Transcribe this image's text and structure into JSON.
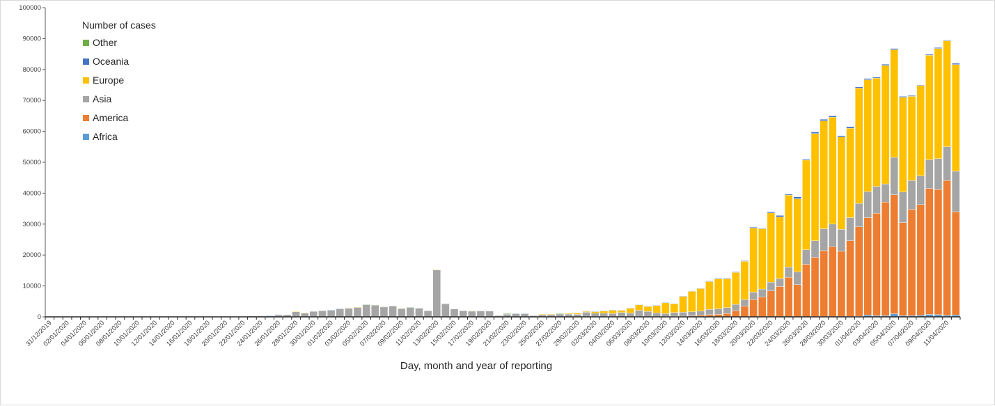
{
  "chart_data": {
    "type": "bar",
    "stacked": true,
    "title": "",
    "xlabel": "Day, month and year of reporting",
    "ylabel": "",
    "ylim": [
      0,
      100000
    ],
    "yticks": [
      0,
      10000,
      20000,
      30000,
      40000,
      50000,
      60000,
      70000,
      80000,
      90000,
      100000
    ],
    "legend": {
      "title": "Number of cases",
      "placement": "top-left",
      "order": [
        "Other",
        "Oceania",
        "Europe",
        "Asia",
        "America",
        "Africa"
      ]
    },
    "tick_label_every": 2,
    "categories": [
      "31/12/2019",
      "01/01/2020",
      "02/01/2020",
      "03/01/2020",
      "04/01/2020",
      "05/01/2020",
      "06/01/2020",
      "07/01/2020",
      "08/01/2020",
      "09/01/2020",
      "10/01/2020",
      "11/01/2020",
      "12/01/2020",
      "13/01/2020",
      "14/01/2020",
      "15/01/2020",
      "16/01/2020",
      "17/01/2020",
      "18/01/2020",
      "19/01/2020",
      "20/01/2020",
      "21/01/2020",
      "22/01/2020",
      "23/01/2020",
      "24/01/2020",
      "25/01/2020",
      "26/01/2020",
      "27/01/2020",
      "28/01/2020",
      "29/01/2020",
      "30/01/2020",
      "31/01/2020",
      "01/02/2020",
      "02/02/2020",
      "03/02/2020",
      "04/02/2020",
      "05/02/2020",
      "06/02/2020",
      "07/02/2020",
      "08/02/2020",
      "09/02/2020",
      "10/02/2020",
      "11/02/2020",
      "12/02/2020",
      "13/02/2020",
      "14/02/2020",
      "15/02/2020",
      "16/02/2020",
      "17/02/2020",
      "18/02/2020",
      "19/02/2020",
      "20/02/2020",
      "21/02/2020",
      "22/02/2020",
      "23/02/2020",
      "24/02/2020",
      "25/02/2020",
      "26/02/2020",
      "27/02/2020",
      "28/02/2020",
      "29/02/2020",
      "01/03/2020",
      "02/03/2020",
      "03/03/2020",
      "04/03/2020",
      "05/03/2020",
      "06/03/2020",
      "07/03/2020",
      "08/03/2020",
      "09/03/2020",
      "10/03/2020",
      "11/03/2020",
      "12/03/2020",
      "13/03/2020",
      "14/03/2020",
      "15/03/2020",
      "16/03/2020",
      "17/03/2020",
      "18/03/2020",
      "19/03/2020",
      "20/03/2020",
      "21/03/2020",
      "22/03/2020",
      "23/03/2020",
      "24/03/2020",
      "25/03/2020",
      "26/03/2020",
      "27/03/2020",
      "28/03/2020",
      "29/03/2020",
      "30/03/2020",
      "31/03/2020",
      "01/04/2020",
      "02/04/2020",
      "03/04/2020",
      "04/04/2020",
      "05/04/2020",
      "06/04/2020",
      "07/04/2020",
      "08/04/2020",
      "09/04/2020",
      "10/04/2020",
      "11/04/2020",
      "12/04/2020"
    ],
    "series": [
      {
        "name": "Africa",
        "color": "#5b9bd5",
        "values": [
          0,
          0,
          0,
          0,
          0,
          0,
          0,
          0,
          0,
          0,
          0,
          0,
          0,
          0,
          0,
          0,
          0,
          0,
          0,
          0,
          0,
          0,
          0,
          0,
          0,
          0,
          0,
          0,
          0,
          0,
          0,
          0,
          0,
          0,
          0,
          0,
          0,
          0,
          0,
          0,
          0,
          0,
          0,
          0,
          0,
          0,
          0,
          0,
          0,
          0,
          0,
          0,
          0,
          0,
          0,
          0,
          0,
          0,
          0,
          0,
          0,
          0,
          0,
          0,
          0,
          0,
          0,
          0,
          0,
          0,
          0,
          0,
          0,
          0,
          0,
          0,
          0,
          0,
          0,
          0,
          0,
          0,
          0,
          0,
          0,
          0,
          0,
          100,
          100,
          100,
          100,
          100,
          200,
          600,
          400,
          400,
          1000,
          400,
          400,
          500,
          800,
          700,
          500,
          600
        ]
      },
      {
        "name": "America",
        "color": "#ed7d31",
        "values": [
          0,
          0,
          0,
          0,
          0,
          0,
          0,
          0,
          0,
          0,
          0,
          0,
          0,
          0,
          0,
          0,
          0,
          0,
          0,
          0,
          0,
          0,
          0,
          0,
          0,
          0,
          0,
          0,
          0,
          0,
          0,
          0,
          0,
          0,
          0,
          0,
          0,
          0,
          0,
          0,
          0,
          0,
          0,
          0,
          0,
          0,
          0,
          0,
          0,
          0,
          0,
          0,
          0,
          0,
          0,
          0,
          0,
          0,
          0,
          0,
          0,
          0,
          0,
          0,
          0,
          0,
          50,
          100,
          100,
          100,
          100,
          200,
          200,
          300,
          500,
          700,
          800,
          1100,
          2000,
          3450,
          5600,
          6400,
          8400,
          9800,
          12800,
          10400,
          17000,
          19100,
          21300,
          22600,
          21100,
          24500,
          28900,
          31500,
          33100,
          36700,
          38500,
          30100,
          34300,
          35800,
          40700,
          40500,
          43600,
          33400
        ]
      },
      {
        "name": "Asia",
        "color": "#a5a5a5",
        "values": [
          27,
          0,
          0,
          17,
          0,
          15,
          0,
          0,
          0,
          0,
          0,
          0,
          0,
          0,
          0,
          0,
          4,
          17,
          136,
          19,
          151,
          140,
          97,
          259,
          260,
          300,
          600,
          675,
          1650,
          1250,
          1775,
          2000,
          2150,
          2600,
          2750,
          3050,
          3980,
          3830,
          3230,
          3500,
          2700,
          3080,
          2800,
          2000,
          15150,
          4230,
          2550,
          2000,
          1850,
          1930,
          1875,
          425,
          850,
          1025,
          1025,
          425,
          700,
          700,
          925,
          900,
          800,
          1500,
          1200,
          1200,
          1100,
          1400,
          1200,
          2000,
          1650,
          1200,
          950,
          1200,
          1300,
          1350,
          1400,
          1700,
          1800,
          1900,
          2050,
          2150,
          2400,
          2600,
          2800,
          2600,
          3300,
          4200,
          4700,
          5400,
          7100,
          7300,
          7100,
          7500,
          7600,
          8400,
          8700,
          5900,
          12100,
          9900,
          9400,
          9300,
          9300,
          10000,
          10900,
          13100
        ]
      },
      {
        "name": "Europe",
        "color": "#ffc000",
        "values": [
          0,
          0,
          0,
          0,
          0,
          0,
          0,
          0,
          0,
          0,
          0,
          0,
          0,
          0,
          0,
          0,
          0,
          0,
          0,
          0,
          0,
          0,
          0,
          0,
          0,
          0,
          0,
          0,
          150,
          100,
          0,
          0,
          0,
          0,
          150,
          150,
          0,
          0,
          0,
          0,
          100,
          0,
          0,
          0,
          150,
          0,
          0,
          0,
          100,
          0,
          0,
          0,
          0,
          0,
          0,
          0,
          200,
          200,
          0,
          250,
          400,
          300,
          500,
          700,
          1050,
          700,
          1550,
          1800,
          1650,
          2350,
          3500,
          2850,
          5150,
          6600,
          7250,
          9000,
          9700,
          9300,
          10300,
          12350,
          20700,
          19500,
          22400,
          19900,
          23300,
          23600,
          29000,
          34700,
          34900,
          34600,
          29900,
          28900,
          37300,
          36200,
          35000,
          38300,
          34800,
          30600,
          27200,
          29200,
          33800,
          35600,
          34300,
          34500
        ]
      },
      {
        "name": "Oceania",
        "color": "#4472c4",
        "values": [
          0,
          0,
          0,
          0,
          0,
          0,
          0,
          0,
          0,
          0,
          0,
          0,
          0,
          0,
          0,
          0,
          0,
          0,
          0,
          0,
          0,
          0,
          0,
          0,
          0,
          150,
          150,
          0,
          0,
          0,
          100,
          0,
          100,
          100,
          0,
          0,
          0,
          0,
          0,
          0,
          0,
          0,
          0,
          0,
          0,
          0,
          0,
          0,
          0,
          0,
          0,
          0,
          0,
          100,
          100,
          0,
          0,
          0,
          0,
          0,
          100,
          100,
          100,
          100,
          100,
          100,
          100,
          100,
          100,
          100,
          100,
          100,
          100,
          150,
          150,
          200,
          200,
          200,
          200,
          200,
          300,
          200,
          400,
          500,
          300,
          600,
          300,
          500,
          500,
          400,
          400,
          500,
          400,
          400,
          300,
          400,
          400,
          300,
          300,
          200,
          300,
          300,
          200,
          400
        ]
      },
      {
        "name": "Other",
        "color": "#70ad47",
        "values": [
          0,
          0,
          0,
          0,
          0,
          0,
          0,
          0,
          0,
          0,
          0,
          0,
          0,
          0,
          0,
          0,
          0,
          0,
          0,
          0,
          0,
          0,
          0,
          0,
          0,
          0,
          0,
          0,
          0,
          0,
          0,
          0,
          0,
          0,
          0,
          0,
          70,
          70,
          70,
          0,
          0,
          70,
          0,
          0,
          0,
          70,
          0,
          0,
          0,
          70,
          0,
          100,
          200,
          0,
          0,
          100,
          0,
          0,
          200,
          0,
          0,
          0,
          0,
          0,
          0,
          0,
          0,
          0,
          0,
          0,
          0,
          0,
          0,
          0,
          0,
          0,
          0,
          0,
          0,
          0,
          0,
          0,
          0,
          0,
          0,
          0,
          0,
          0,
          0,
          0,
          0,
          0,
          0,
          0,
          0,
          0,
          0,
          0,
          0,
          0,
          0,
          0,
          0,
          0
        ]
      }
    ]
  }
}
